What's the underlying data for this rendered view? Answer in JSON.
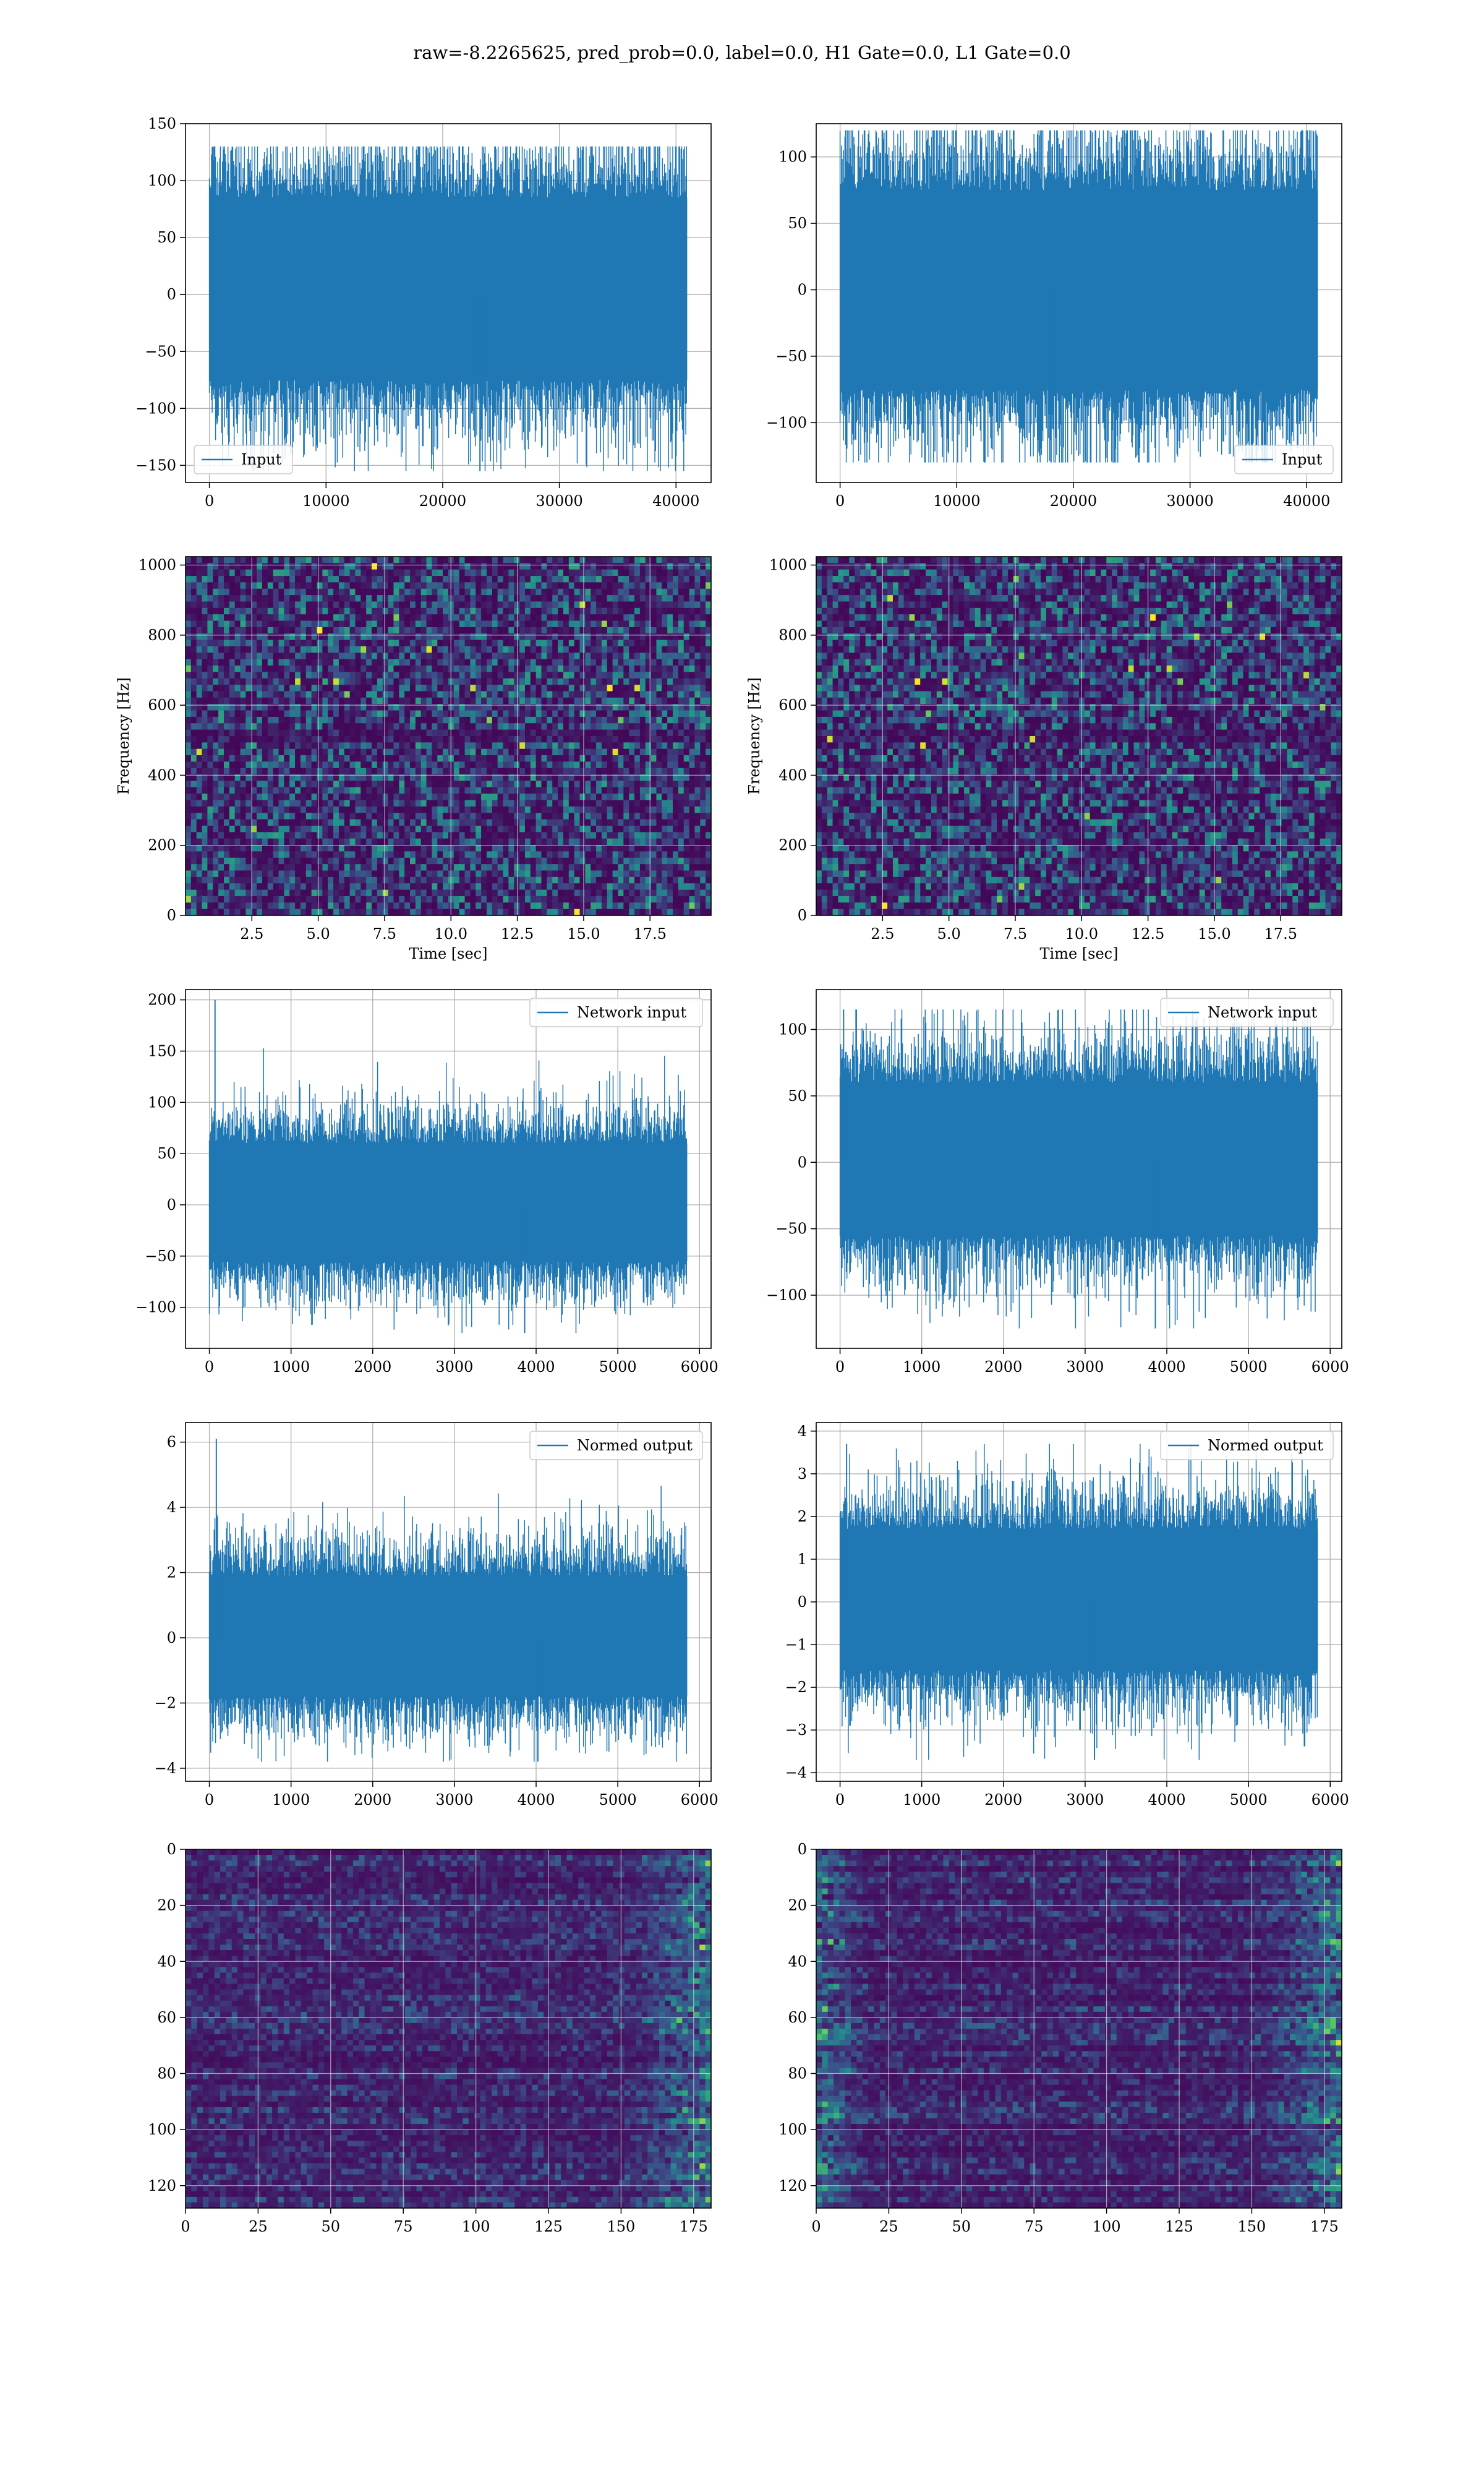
{
  "figure": {
    "title": "raw=-8.2265625, pred_prob=0.0, label=0.0, H1 Gate=0.0, L1 Gate=0.0",
    "line_color": "#1f77b4",
    "grid_color": "#b0b0b0"
  },
  "chart_data": [
    {
      "type": "line",
      "row": 1,
      "col": 1,
      "series": [
        {
          "name": "Input",
          "x_range": [
            0,
            40960
          ],
          "center": 0,
          "band": [
            -75,
            85
          ],
          "peaks": [
            130,
            -155
          ]
        }
      ],
      "xlim": [
        -2048,
        43008
      ],
      "ylim": [
        -165,
        150
      ],
      "xticks": [
        0,
        10000,
        20000,
        30000,
        40000
      ],
      "xtick_labels": [
        "0",
        "10000",
        "20000",
        "30000",
        "40000"
      ],
      "yticks": [
        -150,
        -100,
        -50,
        0,
        50,
        100,
        150
      ],
      "ytick_labels": [
        "−150",
        "−100",
        "−50",
        "0",
        "50",
        "100",
        "150"
      ],
      "legend": "lower-left",
      "grid": true
    },
    {
      "type": "line",
      "row": 1,
      "col": 2,
      "series": [
        {
          "name": "Input",
          "x_range": [
            0,
            40960
          ],
          "center": 0,
          "band": [
            -75,
            75
          ],
          "peaks": [
            120,
            -130
          ]
        }
      ],
      "xlim": [
        -2048,
        43008
      ],
      "ylim": [
        -145,
        125
      ],
      "xticks": [
        0,
        10000,
        20000,
        30000,
        40000
      ],
      "xtick_labels": [
        "0",
        "10000",
        "20000",
        "30000",
        "40000"
      ],
      "yticks": [
        -100,
        -50,
        0,
        50,
        100
      ],
      "ytick_labels": [
        "−100",
        "−50",
        "0",
        "50",
        "100"
      ],
      "legend": "lower-right",
      "grid": true
    },
    {
      "type": "heatmap",
      "row": 2,
      "col": 1,
      "xlim": [
        0,
        19.8
      ],
      "ylim": [
        0,
        1024
      ],
      "xticks": [
        2.5,
        5.0,
        7.5,
        10.0,
        12.5,
        15.0,
        17.5
      ],
      "xtick_labels": [
        "2.5",
        "5.0",
        "7.5",
        "10.0",
        "12.5",
        "15.0",
        "17.5"
      ],
      "yticks": [
        0,
        200,
        400,
        600,
        800,
        1000
      ],
      "ytick_labels": [
        "0",
        "200",
        "400",
        "600",
        "800",
        "1000"
      ],
      "xlabel": "Time [sec]",
      "ylabel": "Frequency [Hz]",
      "colormap": "viridis",
      "grid": true
    },
    {
      "type": "heatmap",
      "row": 2,
      "col": 2,
      "xlim": [
        0,
        19.8
      ],
      "ylim": [
        0,
        1024
      ],
      "xticks": [
        2.5,
        5.0,
        7.5,
        10.0,
        12.5,
        15.0,
        17.5
      ],
      "xtick_labels": [
        "2.5",
        "5.0",
        "7.5",
        "10.0",
        "12.5",
        "15.0",
        "17.5"
      ],
      "yticks": [
        0,
        200,
        400,
        600,
        800,
        1000
      ],
      "ytick_labels": [
        "0",
        "200",
        "400",
        "600",
        "800",
        "1000"
      ],
      "xlabel": "Time [sec]",
      "ylabel": "Frequency [Hz]",
      "colormap": "viridis",
      "grid": true
    },
    {
      "type": "line",
      "row": 3,
      "col": 1,
      "series": [
        {
          "name": "Network input",
          "x_range": [
            0,
            5850
          ],
          "center": 0,
          "band": [
            -55,
            60
          ],
          "peaks": [
            200,
            -125
          ]
        }
      ],
      "xlim": [
        -292,
        6142
      ],
      "ylim": [
        -140,
        210
      ],
      "xticks": [
        0,
        1000,
        2000,
        3000,
        4000,
        5000,
        6000
      ],
      "xtick_labels": [
        "0",
        "1000",
        "2000",
        "3000",
        "4000",
        "5000",
        "6000"
      ],
      "yticks": [
        -100,
        -50,
        0,
        50,
        100,
        150,
        200
      ],
      "ytick_labels": [
        "−100",
        "−50",
        "0",
        "50",
        "100",
        "150",
        "200"
      ],
      "legend": "upper-right",
      "grid": true
    },
    {
      "type": "line",
      "row": 3,
      "col": 2,
      "series": [
        {
          "name": "Network input",
          "x_range": [
            0,
            5850
          ],
          "center": 0,
          "band": [
            -55,
            60
          ],
          "peaks": [
            115,
            -125
          ]
        }
      ],
      "xlim": [
        -292,
        6142
      ],
      "ylim": [
        -140,
        130
      ],
      "xticks": [
        0,
        1000,
        2000,
        3000,
        4000,
        5000,
        6000
      ],
      "xtick_labels": [
        "0",
        "1000",
        "2000",
        "3000",
        "4000",
        "5000",
        "6000"
      ],
      "yticks": [
        -100,
        -50,
        0,
        50,
        100
      ],
      "ytick_labels": [
        "−100",
        "−50",
        "0",
        "50",
        "100"
      ],
      "legend": "upper-right",
      "grid": true
    },
    {
      "type": "line",
      "row": 4,
      "col": 1,
      "series": [
        {
          "name": "Normed output",
          "x_range": [
            0,
            5850
          ],
          "center": 0,
          "band": [
            -1.8,
            1.9
          ],
          "peaks": [
            6.1,
            -3.8
          ]
        }
      ],
      "xlim": [
        -292,
        6142
      ],
      "ylim": [
        -4.4,
        6.6
      ],
      "xticks": [
        0,
        1000,
        2000,
        3000,
        4000,
        5000,
        6000
      ],
      "xtick_labels": [
        "0",
        "1000",
        "2000",
        "3000",
        "4000",
        "5000",
        "6000"
      ],
      "yticks": [
        -4,
        -2,
        0,
        2,
        4,
        6
      ],
      "ytick_labels": [
        "−4",
        "−2",
        "0",
        "2",
        "4",
        "6"
      ],
      "legend": "upper-right",
      "grid": true
    },
    {
      "type": "line",
      "row": 4,
      "col": 2,
      "series": [
        {
          "name": "Normed output",
          "x_range": [
            0,
            5850
          ],
          "center": 0,
          "band": [
            -1.6,
            1.7
          ],
          "peaks": [
            3.7,
            -3.7
          ]
        }
      ],
      "xlim": [
        -292,
        6142
      ],
      "ylim": [
        -4.2,
        4.2
      ],
      "xticks": [
        0,
        1000,
        2000,
        3000,
        4000,
        5000,
        6000
      ],
      "xtick_labels": [
        "0",
        "1000",
        "2000",
        "3000",
        "4000",
        "5000",
        "6000"
      ],
      "yticks": [
        -4,
        -3,
        -2,
        -1,
        0,
        1,
        2,
        3,
        4
      ],
      "ytick_labels": [
        "−4",
        "−3",
        "−2",
        "−1",
        "0",
        "1",
        "2",
        "3",
        "4"
      ],
      "legend": "upper-right",
      "grid": true
    },
    {
      "type": "heatmap",
      "row": 5,
      "col": 1,
      "xlim": [
        0,
        181
      ],
      "ylim": [
        128,
        0
      ],
      "xticks": [
        0,
        25,
        50,
        75,
        100,
        125,
        150,
        175
      ],
      "xtick_labels": [
        "0",
        "25",
        "50",
        "75",
        "100",
        "125",
        "150",
        "175"
      ],
      "yticks": [
        0,
        20,
        40,
        60,
        80,
        100,
        120
      ],
      "ytick_labels": [
        "0",
        "20",
        "40",
        "60",
        "80",
        "100",
        "120"
      ],
      "bright_edges": "right",
      "colormap": "viridis",
      "grid": true
    },
    {
      "type": "heatmap",
      "row": 5,
      "col": 2,
      "xlim": [
        0,
        181
      ],
      "ylim": [
        128,
        0
      ],
      "xticks": [
        0,
        25,
        50,
        75,
        100,
        125,
        150,
        175
      ],
      "xtick_labels": [
        "0",
        "25",
        "50",
        "75",
        "100",
        "125",
        "150",
        "175"
      ],
      "yticks": [
        0,
        20,
        40,
        60,
        80,
        100,
        120
      ],
      "ytick_labels": [
        "0",
        "20",
        "40",
        "60",
        "80",
        "100",
        "120"
      ],
      "bright_edges": "both",
      "colormap": "viridis",
      "grid": true
    }
  ]
}
